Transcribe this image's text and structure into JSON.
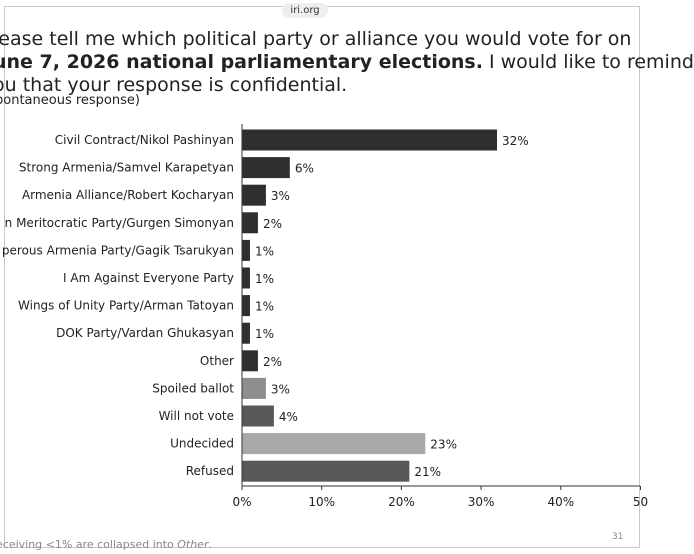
{
  "header": {
    "site": "iri.org"
  },
  "question": {
    "line1": "lease tell me which political party or alliance you would vote for on",
    "line2_bold": "une 7, 2026 national parliamentary elections.",
    "line2_rest": " I would like to remind",
    "line3": "ou that your response is confidential."
  },
  "note": "pontaneous response)",
  "footer": {
    "text": "eceiving <1% are collapsed into ",
    "italic": "Other",
    "end": ".",
    "page": "31"
  },
  "colors": {
    "dark": "#2f2f2f",
    "mid": "#585858",
    "gray": "#8e8e8e",
    "light": "#a8a8a8"
  },
  "chart_data": {
    "type": "bar",
    "orientation": "horizontal",
    "categories": [
      "Civil Contract/Nikol Pashinyan",
      "Strong Armenia/Samvel Karapetyan",
      "Armenia Alliance/Robert Kocharyan",
      "n Meritocratic Party/Gurgen Simonyan",
      "perous Armenia Party/Gagik Tsarukyan",
      "I Am Against Everyone Party",
      "Wings of Unity Party/Arman Tatoyan",
      "DOK Party/Vardan Ghukasyan",
      "Other",
      "Spoiled ballot",
      "Will not vote",
      "Undecided",
      "Refused"
    ],
    "values": [
      32,
      6,
      3,
      2,
      1,
      1,
      1,
      1,
      2,
      3,
      4,
      23,
      21
    ],
    "value_labels": [
      "32%",
      "6%",
      "3%",
      "2%",
      "1%",
      "1%",
      "1%",
      "1%",
      "2%",
      "3%",
      "4%",
      "23%",
      "21%"
    ],
    "bar_colors": [
      "#2f2f2f",
      "#2f2f2f",
      "#2f2f2f",
      "#2f2f2f",
      "#2f2f2f",
      "#2f2f2f",
      "#2f2f2f",
      "#2f2f2f",
      "#2f2f2f",
      "#8e8e8e",
      "#585858",
      "#a8a8a8",
      "#585858"
    ],
    "xticks": [
      "0%",
      "10%",
      "20%",
      "30%",
      "40%",
      "50"
    ],
    "xlim": [
      0,
      50
    ],
    "grid": false,
    "title": "",
    "xlabel": "",
    "ylabel": ""
  }
}
